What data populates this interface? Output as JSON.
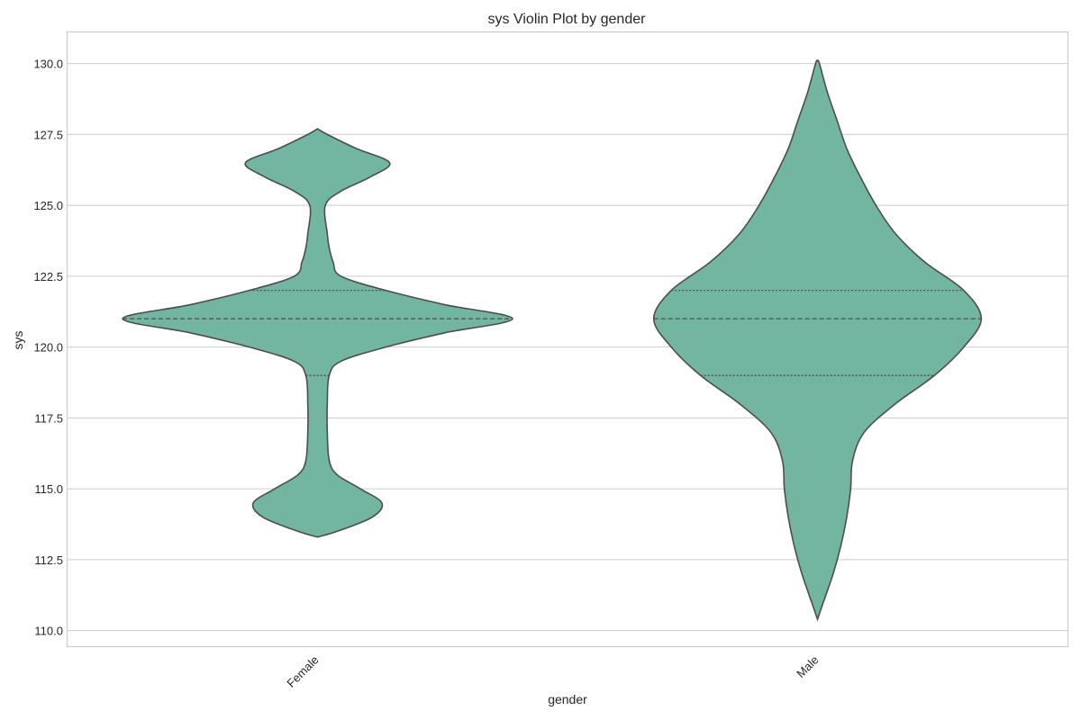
{
  "chart_data": {
    "type": "violin",
    "title": "sys Violin Plot by gender",
    "xlabel": "gender",
    "ylabel": "sys",
    "categories": [
      "Female",
      "Male"
    ],
    "ylim": [
      109.45,
      131.1
    ],
    "yticks": [
      110.0,
      112.5,
      115.0,
      117.5,
      120.0,
      122.5,
      125.0,
      127.5,
      130.0
    ],
    "grid": true,
    "colors": {
      "fill": "#72b6a1",
      "edge": "#4d4d4d",
      "grid": "#cccccc",
      "frame": "#cccccc"
    },
    "violins": [
      {
        "category": "Female",
        "min": 113.3,
        "max": 127.7,
        "q1": 119.0,
        "median": 121.0,
        "q3": 122.0,
        "density": [
          [
            113.3,
            0.0
          ],
          [
            113.5,
            0.1
          ],
          [
            114.0,
            0.28
          ],
          [
            114.5,
            0.33
          ],
          [
            115.0,
            0.22
          ],
          [
            115.5,
            0.1
          ],
          [
            116.0,
            0.06
          ],
          [
            117.0,
            0.05
          ],
          [
            118.0,
            0.05
          ],
          [
            119.0,
            0.06
          ],
          [
            119.5,
            0.12
          ],
          [
            120.0,
            0.35
          ],
          [
            120.5,
            0.65
          ],
          [
            121.0,
            1.0
          ],
          [
            121.5,
            0.65
          ],
          [
            122.0,
            0.35
          ],
          [
            122.5,
            0.12
          ],
          [
            123.0,
            0.08
          ],
          [
            123.5,
            0.06
          ],
          [
            124.0,
            0.05
          ],
          [
            125.0,
            0.04
          ],
          [
            125.5,
            0.12
          ],
          [
            126.0,
            0.27
          ],
          [
            126.5,
            0.37
          ],
          [
            127.0,
            0.2
          ],
          [
            127.5,
            0.05
          ],
          [
            127.7,
            0.0
          ]
        ]
      },
      {
        "category": "Male",
        "min": 110.4,
        "max": 130.1,
        "q1": 119.0,
        "median": 121.0,
        "q3": 122.0,
        "density": [
          [
            110.4,
            0.0
          ],
          [
            111.0,
            0.03
          ],
          [
            112.0,
            0.08
          ],
          [
            113.0,
            0.12
          ],
          [
            114.0,
            0.15
          ],
          [
            115.0,
            0.17
          ],
          [
            116.0,
            0.18
          ],
          [
            117.0,
            0.24
          ],
          [
            118.0,
            0.4
          ],
          [
            119.0,
            0.6
          ],
          [
            120.0,
            0.75
          ],
          [
            121.0,
            0.84
          ],
          [
            122.0,
            0.75
          ],
          [
            123.0,
            0.55
          ],
          [
            124.0,
            0.4
          ],
          [
            125.0,
            0.3
          ],
          [
            126.0,
            0.22
          ],
          [
            127.0,
            0.15
          ],
          [
            128.0,
            0.1
          ],
          [
            129.0,
            0.05
          ],
          [
            130.0,
            0.01
          ],
          [
            130.1,
            0.0
          ]
        ]
      }
    ]
  }
}
